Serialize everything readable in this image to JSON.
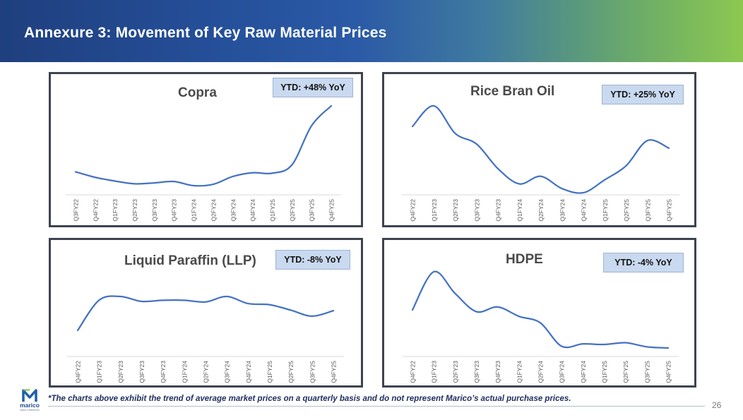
{
  "header": {
    "title": "Annexure 3: Movement of Key Raw Material Prices"
  },
  "footnote": "*The charts above exhibit the trend of average market prices on a quarterly basis and do not represent Marico’s actual purchase prices.",
  "page_number": "26",
  "logo": {
    "word": "marico",
    "tagline": "make a difference"
  },
  "colors": {
    "line": "#4472c4",
    "ytd_bg": "#c9d9ef",
    "panel_border": "#3e4350"
  },
  "chart_data": [
    {
      "type": "line",
      "title": "Copra",
      "badge": "YTD: +48% YoY",
      "categories": [
        "Q3FY22",
        "Q4FY22",
        "Q1FY23",
        "Q2FY23",
        "Q3FY23",
        "Q4FY23",
        "Q1FY24",
        "Q2FY24",
        "Q3FY24",
        "Q4FY24",
        "Q1FY25",
        "Q2FY25",
        "Q3FY25",
        "Q4FY25"
      ],
      "values": [
        100,
        88,
        80,
        74,
        76,
        79,
        70,
        73,
        90,
        98,
        97,
        115,
        200,
        243
      ]
    },
    {
      "type": "line",
      "title": "Rice Bran Oil",
      "badge": "YTD: +25% YoY",
      "categories": [
        "Q4FY22",
        "Q1FY23",
        "Q2FY23",
        "Q3FY23",
        "Q4FY23",
        "Q1FY24",
        "Q2FY24",
        "Q3FY24",
        "Q4FY24",
        "Q1FY25",
        "Q2FY25",
        "Q3FY25",
        "Q4FY25"
      ],
      "values": [
        210,
        245,
        198,
        180,
        138,
        112,
        125,
        104,
        97,
        119,
        143,
        186,
        173
      ]
    },
    {
      "type": "line",
      "title": "Liquid Paraffin (LLP)",
      "badge": "YTD: -8% YoY",
      "categories": [
        "Q4FY22",
        "Q1FY23",
        "Q2FY23",
        "Q3FY23",
        "Q4FY23",
        "Q1FY24",
        "Q2FY24",
        "Q3FY24",
        "Q4FY24",
        "Q1FY25",
        "Q2FY25",
        "Q3FY25",
        "Q4FY25"
      ],
      "values": [
        150,
        205,
        212,
        203,
        205,
        205,
        202,
        212,
        199,
        197,
        187,
        176,
        186
      ]
    },
    {
      "type": "line",
      "title": "HDPE",
      "badge": "YTD: -4% YoY",
      "categories": [
        "Q4FY22",
        "Q1FY23",
        "Q2FY23",
        "Q3FY23",
        "Q4FY23",
        "Q1FY24",
        "Q2FY24",
        "Q3FY24",
        "Q4FY24",
        "Q1FY25",
        "Q2FY25",
        "Q3FY25",
        "Q4FY25"
      ],
      "values": [
        180,
        245,
        208,
        177,
        185,
        169,
        158,
        118,
        122,
        121,
        124,
        117,
        115
      ]
    }
  ]
}
